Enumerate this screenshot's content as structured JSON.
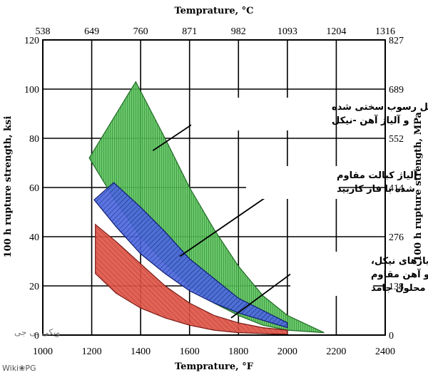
{
  "chart_data": {
    "type": "area",
    "title": "",
    "xlabel": "Temprature, °F",
    "x2label": "Temprature, °C",
    "ylabel": "100 h rupture strength, ksi",
    "y2label": "100 h rupture strength, MPa",
    "xlim": [
      1000,
      2400
    ],
    "ylim": [
      0,
      120
    ],
    "x_ticks": [
      "1000",
      "1200",
      "1400",
      "1600",
      "1800",
      "2000",
      "2200",
      "2400"
    ],
    "y_ticks": [
      "0",
      "20",
      "40",
      "60",
      "80",
      "100",
      "120"
    ],
    "x2_ticks": [
      "538",
      "649",
      "760",
      "871",
      "982",
      "1093",
      "1204",
      "1316"
    ],
    "y2_ticks": [
      "0",
      "138",
      "276",
      "414",
      "552",
      "689",
      "827"
    ],
    "grid": true,
    "series": [
      {
        "color": "#5cc45c",
        "pattern": "vertical-lines",
        "upper": [
          [
            1190,
            72
          ],
          [
            1380,
            103
          ],
          [
            1500,
            80
          ],
          [
            1600,
            60
          ],
          [
            1700,
            43
          ],
          [
            1800,
            28
          ],
          [
            1900,
            16
          ],
          [
            2000,
            8
          ],
          [
            2150,
            1
          ]
        ],
        "lower": [
          [
            1190,
            72
          ],
          [
            1300,
            54
          ],
          [
            1400,
            40
          ],
          [
            1500,
            29
          ],
          [
            1600,
            20
          ],
          [
            1700,
            13
          ],
          [
            1800,
            8
          ],
          [
            1900,
            4
          ],
          [
            2000,
            2
          ],
          [
            2150,
            1
          ]
        ]
      },
      {
        "color": "#4d6ae0",
        "pattern": "diagonal-lines",
        "upper": [
          [
            1210,
            55
          ],
          [
            1290,
            62
          ],
          [
            1400,
            52
          ],
          [
            1500,
            42
          ],
          [
            1600,
            31
          ],
          [
            1700,
            23
          ],
          [
            1800,
            15
          ],
          [
            1900,
            10
          ],
          [
            2000,
            5
          ]
        ],
        "lower": [
          [
            1210,
            55
          ],
          [
            1300,
            44
          ],
          [
            1400,
            33
          ],
          [
            1500,
            25
          ],
          [
            1600,
            18
          ],
          [
            1700,
            13
          ],
          [
            1800,
            9
          ],
          [
            1900,
            6
          ],
          [
            2000,
            3
          ]
        ]
      },
      {
        "color": "#e05548",
        "pattern": "diagonal-lines",
        "upper": [
          [
            1215,
            45
          ],
          [
            1300,
            38
          ],
          [
            1400,
            29
          ],
          [
            1500,
            20
          ],
          [
            1600,
            13
          ],
          [
            1700,
            8
          ],
          [
            1800,
            5
          ],
          [
            1900,
            3
          ],
          [
            2000,
            2
          ]
        ],
        "lower": [
          [
            1215,
            25
          ],
          [
            1300,
            17
          ],
          [
            1400,
            11
          ],
          [
            1500,
            7
          ],
          [
            1600,
            4
          ],
          [
            1700,
            2
          ],
          [
            1800,
            1
          ],
          [
            2000,
            0.3
          ]
        ]
      }
    ],
    "annotations": [
      {
        "lines": [
          "(γ' , γ'') نیکل رسوب سختی شده",
          "و آلیاژ آهن -نیکل"
        ],
        "target": [
          1450,
          75
        ]
      },
      {
        "lines": [
          "آلیاژ کبالت مقاوم",
          "شده با فاز کاربید"
        ],
        "target": [
          1560,
          32
        ]
      },
      {
        "lines": [
          "آلیاژهای نیکل،",
          "کبالت و آهن مقاوم",
          "شده با محلول جامد"
        ],
        "target": [
          1770,
          7
        ]
      }
    ]
  },
  "watermark": {
    "site": "Wiki❀PG",
    "script": "ویکی پی جی"
  }
}
